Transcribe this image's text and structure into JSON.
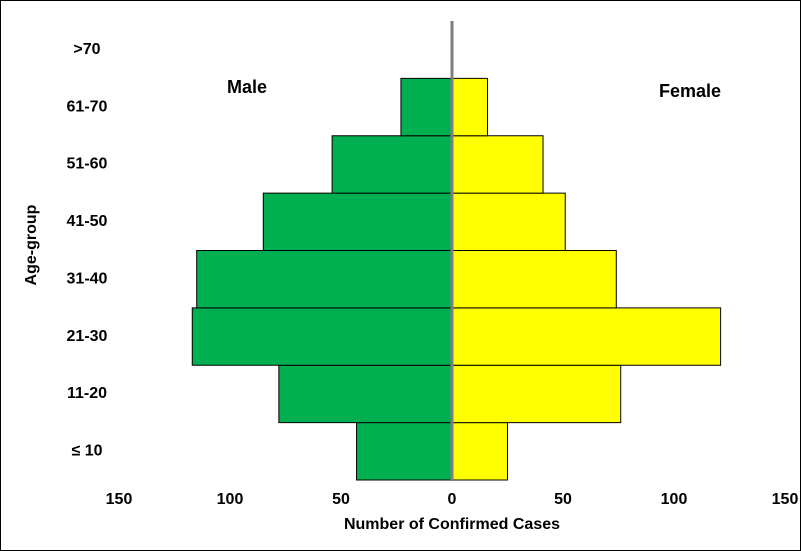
{
  "chart_data": {
    "type": "pyramid",
    "y_label": "Age-group",
    "x_label": "Number of Confirmed Cases",
    "categories": [
      "≤ 10",
      "11-20",
      "21-30",
      "31-40",
      "41-50",
      "51-60",
      "61-70",
      ">70"
    ],
    "series": [
      {
        "name": "Male",
        "color": "#00b050",
        "values": [
          43,
          78,
          117,
          115,
          85,
          54,
          23,
          0
        ]
      },
      {
        "name": "Female",
        "color": "#ffff00",
        "values": [
          25,
          76,
          121,
          74,
          51,
          41,
          16,
          0
        ]
      }
    ],
    "xlim": [
      -150,
      150
    ],
    "xticks": [
      {
        "value": -150,
        "label": "150"
      },
      {
        "value": -100,
        "label": "100"
      },
      {
        "value": -50,
        "label": "50"
      },
      0,
      50,
      100,
      150
    ]
  }
}
